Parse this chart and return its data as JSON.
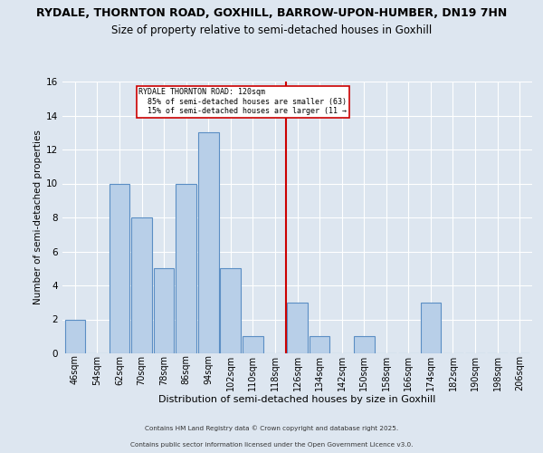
{
  "title": "RYDALE, THORNTON ROAD, GOXHILL, BARROW-UPON-HUMBER, DN19 7HN",
  "subtitle": "Size of property relative to semi-detached houses in Goxhill",
  "xlabel": "Distribution of semi-detached houses by size in Goxhill",
  "ylabel": "Number of semi-detached properties",
  "footnote1": "Contains HM Land Registry data © Crown copyright and database right 2025.",
  "footnote2": "Contains public sector information licensed under the Open Government Licence v3.0.",
  "bin_centers": [
    46,
    54,
    62,
    70,
    78,
    86,
    94,
    102,
    110,
    118,
    126,
    134,
    142,
    150,
    158,
    166,
    174,
    182,
    190,
    198,
    206
  ],
  "bin_labels": [
    "46sqm",
    "54sqm",
    "62sqm",
    "70sqm",
    "78sqm",
    "86sqm",
    "94sqm",
    "102sqm",
    "110sqm",
    "118sqm",
    "126sqm",
    "134sqm",
    "142sqm",
    "150sqm",
    "158sqm",
    "166sqm",
    "174sqm",
    "182sqm",
    "190sqm",
    "198sqm",
    "206sqm"
  ],
  "counts": [
    2,
    0,
    10,
    8,
    5,
    10,
    13,
    5,
    1,
    0,
    3,
    1,
    0,
    1,
    0,
    0,
    3,
    0,
    0,
    0,
    0
  ],
  "bar_color": "#b8cfe8",
  "bar_edge_color": "#5b8ec4",
  "ref_line_color": "#cc0000",
  "annotation_box_edge": "#cc0000",
  "ylim": [
    0,
    16
  ],
  "yticks": [
    0,
    2,
    4,
    6,
    8,
    10,
    12,
    14,
    16
  ],
  "background_color": "#dde6f0",
  "plot_background": "#dde6f0",
  "title_fontsize": 9,
  "subtitle_fontsize": 8.5,
  "ref_line_x": 118
}
